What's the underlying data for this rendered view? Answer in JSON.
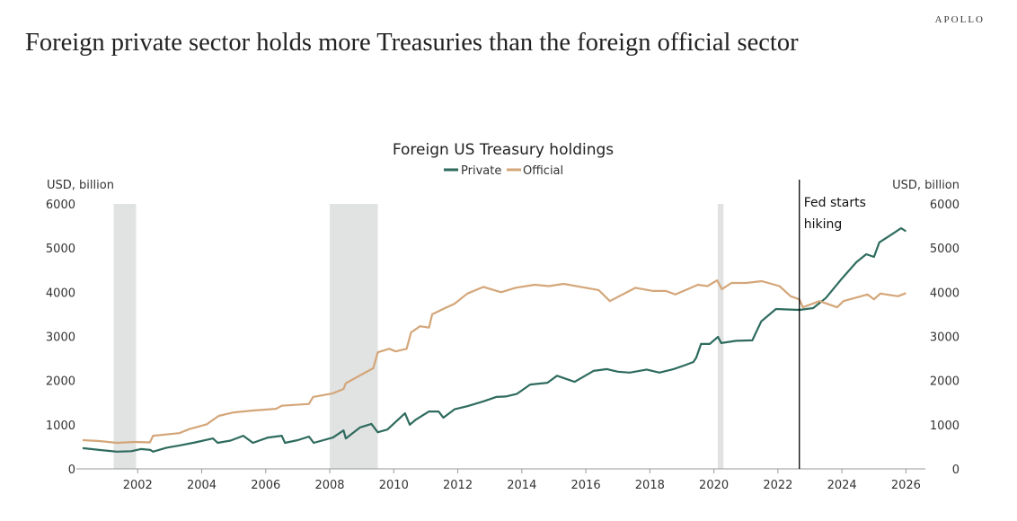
{
  "brand": "APOLLO",
  "headline": "Foreign private sector holds more Treasuries than the foreign official sector",
  "chart_data": {
    "type": "line",
    "title": "Foreign US Treasury holdings",
    "ylabel_left": "USD, billion",
    "ylabel_right": "USD, billion",
    "xlim": [
      2000,
      2026.6
    ],
    "ylim": [
      0,
      6000
    ],
    "xticks": [
      2002,
      2004,
      2006,
      2008,
      2010,
      2012,
      2014,
      2016,
      2018,
      2020,
      2022,
      2024,
      2026
    ],
    "yticks": [
      0,
      1000,
      2000,
      3000,
      4000,
      5000,
      6000
    ],
    "grid": false,
    "legend_placement": "top-center",
    "recessions": [
      [
        2001.25,
        2001.95
      ],
      [
        2008.0,
        2009.5
      ],
      [
        2020.12,
        2020.3
      ]
    ],
    "recession_color": "#e1e2e2",
    "annotation": {
      "x": 2022.67,
      "line1": "Fed starts",
      "line2": "hiking"
    },
    "series": [
      {
        "name": "Private",
        "color": "#2e6b5e",
        "points": [
          [
            2000.28,
            470
          ],
          [
            2000.8,
            430
          ],
          [
            2001.35,
            390
          ],
          [
            2001.8,
            400
          ],
          [
            2002.1,
            450
          ],
          [
            2002.4,
            430
          ],
          [
            2002.48,
            390
          ],
          [
            2002.9,
            480
          ],
          [
            2003.3,
            530
          ],
          [
            2003.8,
            600
          ],
          [
            2004.35,
            690
          ],
          [
            2004.5,
            590
          ],
          [
            2004.9,
            640
          ],
          [
            2005.3,
            750
          ],
          [
            2005.6,
            590
          ],
          [
            2006.07,
            710
          ],
          [
            2006.5,
            750
          ],
          [
            2006.6,
            590
          ],
          [
            2007.0,
            650
          ],
          [
            2007.35,
            730
          ],
          [
            2007.5,
            590
          ],
          [
            2008.1,
            710
          ],
          [
            2008.43,
            870
          ],
          [
            2008.5,
            690
          ],
          [
            2008.95,
            940
          ],
          [
            2009.3,
            1020
          ],
          [
            2009.5,
            830
          ],
          [
            2009.8,
            890
          ],
          [
            2010.35,
            1260
          ],
          [
            2010.5,
            1000
          ],
          [
            2010.7,
            1120
          ],
          [
            2011.1,
            1300
          ],
          [
            2011.4,
            1300
          ],
          [
            2011.55,
            1160
          ],
          [
            2011.9,
            1350
          ],
          [
            2012.3,
            1420
          ],
          [
            2012.8,
            1530
          ],
          [
            2013.2,
            1630
          ],
          [
            2013.5,
            1640
          ],
          [
            2013.85,
            1700
          ],
          [
            2014.26,
            1910
          ],
          [
            2014.8,
            1950
          ],
          [
            2015.1,
            2110
          ],
          [
            2015.65,
            1970
          ],
          [
            2016.24,
            2220
          ],
          [
            2016.66,
            2260
          ],
          [
            2017.0,
            2200
          ],
          [
            2017.37,
            2180
          ],
          [
            2017.9,
            2250
          ],
          [
            2018.3,
            2180
          ],
          [
            2018.74,
            2260
          ],
          [
            2019.1,
            2350
          ],
          [
            2019.36,
            2420
          ],
          [
            2019.45,
            2520
          ],
          [
            2019.6,
            2830
          ],
          [
            2019.87,
            2830
          ],
          [
            2020.13,
            2990
          ],
          [
            2020.23,
            2850
          ],
          [
            2020.7,
            2900
          ],
          [
            2021.2,
            2910
          ],
          [
            2021.48,
            3340
          ],
          [
            2021.94,
            3620
          ],
          [
            2022.3,
            3610
          ],
          [
            2022.67,
            3600
          ],
          [
            2023.1,
            3640
          ],
          [
            2023.5,
            3870
          ],
          [
            2024.0,
            4310
          ],
          [
            2024.45,
            4680
          ],
          [
            2024.76,
            4860
          ],
          [
            2025.0,
            4800
          ],
          [
            2025.17,
            5130
          ],
          [
            2025.6,
            5330
          ],
          [
            2025.85,
            5450
          ],
          [
            2026.0,
            5380
          ]
        ]
      },
      {
        "name": "Official",
        "color": "#d4a679",
        "points": [
          [
            2000.28,
            650
          ],
          [
            2000.8,
            630
          ],
          [
            2001.35,
            590
          ],
          [
            2001.9,
            610
          ],
          [
            2002.38,
            600
          ],
          [
            2002.48,
            750
          ],
          [
            2003.3,
            810
          ],
          [
            2003.6,
            900
          ],
          [
            2004.16,
            1010
          ],
          [
            2004.53,
            1200
          ],
          [
            2005.0,
            1280
          ],
          [
            2005.57,
            1320
          ],
          [
            2006.32,
            1360
          ],
          [
            2006.5,
            1430
          ],
          [
            2007.35,
            1470
          ],
          [
            2007.48,
            1630
          ],
          [
            2008.1,
            1710
          ],
          [
            2008.43,
            1810
          ],
          [
            2008.5,
            1940
          ],
          [
            2009.36,
            2280
          ],
          [
            2009.5,
            2640
          ],
          [
            2009.86,
            2720
          ],
          [
            2010.06,
            2660
          ],
          [
            2010.4,
            2720
          ],
          [
            2010.54,
            3090
          ],
          [
            2010.82,
            3230
          ],
          [
            2011.1,
            3200
          ],
          [
            2011.2,
            3500
          ],
          [
            2011.6,
            3640
          ],
          [
            2011.9,
            3740
          ],
          [
            2012.3,
            3970
          ],
          [
            2012.8,
            4120
          ],
          [
            2013.35,
            4000
          ],
          [
            2013.8,
            4100
          ],
          [
            2014.4,
            4170
          ],
          [
            2014.85,
            4140
          ],
          [
            2015.3,
            4190
          ],
          [
            2015.85,
            4120
          ],
          [
            2016.4,
            4050
          ],
          [
            2016.75,
            3800
          ],
          [
            2017.55,
            4100
          ],
          [
            2018.1,
            4030
          ],
          [
            2018.5,
            4030
          ],
          [
            2018.8,
            3950
          ],
          [
            2019.5,
            4170
          ],
          [
            2019.8,
            4140
          ],
          [
            2020.1,
            4270
          ],
          [
            2020.25,
            4070
          ],
          [
            2020.55,
            4210
          ],
          [
            2021.0,
            4210
          ],
          [
            2021.5,
            4250
          ],
          [
            2022.05,
            4140
          ],
          [
            2022.4,
            3910
          ],
          [
            2022.67,
            3840
          ],
          [
            2022.78,
            3660
          ],
          [
            2023.3,
            3800
          ],
          [
            2023.85,
            3660
          ],
          [
            2024.05,
            3800
          ],
          [
            2024.8,
            3950
          ],
          [
            2025.0,
            3840
          ],
          [
            2025.2,
            3970
          ],
          [
            2025.75,
            3910
          ],
          [
            2026.0,
            3980
          ]
        ]
      }
    ]
  }
}
